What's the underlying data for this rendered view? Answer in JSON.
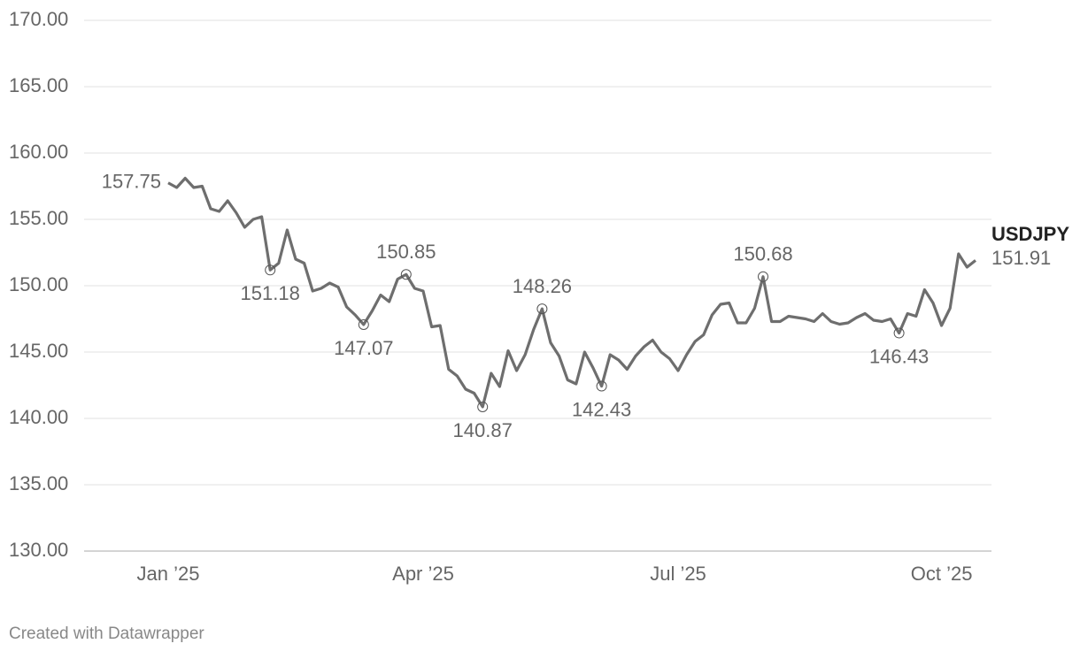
{
  "chart_data": {
    "type": "line",
    "categories": [
      "Jan ’25",
      null,
      null,
      null,
      null,
      null,
      null,
      null,
      null,
      null,
      null,
      null,
      null,
      null,
      null,
      null,
      null,
      null,
      null,
      null,
      null,
      null,
      null,
      null,
      null,
      null,
      null,
      null,
      null,
      null,
      "Apr ’25",
      null,
      null,
      null,
      null,
      null,
      null,
      null,
      null,
      null,
      null,
      null,
      null,
      null,
      null,
      null,
      null,
      null,
      null,
      null,
      null,
      null,
      null,
      null,
      null,
      null,
      null,
      null,
      null,
      null,
      "Jul ’25",
      null,
      null,
      null,
      null,
      null,
      null,
      null,
      null,
      null,
      null,
      null,
      null,
      null,
      null,
      null,
      null,
      null,
      null,
      null,
      null,
      null,
      null,
      null,
      null,
      null,
      null,
      null,
      null,
      null,
      null,
      "Oct ’25",
      null,
      null,
      null,
      null
    ],
    "series": [
      {
        "name": "USDJPY",
        "color": "#6e6e6e",
        "values": [
          157.75,
          157.4,
          158.1,
          157.4,
          157.5,
          155.8,
          155.6,
          156.4,
          155.5,
          154.4,
          155.0,
          155.2,
          151.18,
          151.7,
          154.2,
          152.0,
          151.7,
          149.6,
          149.8,
          150.2,
          149.9,
          148.4,
          147.8,
          147.07,
          148.1,
          149.3,
          148.8,
          150.5,
          150.85,
          149.8,
          149.6,
          146.9,
          147.0,
          143.7,
          143.2,
          142.2,
          141.9,
          140.87,
          143.4,
          142.4,
          145.1,
          143.6,
          144.8,
          146.7,
          148.26,
          145.7,
          144.7,
          142.9,
          142.6,
          145.0,
          143.8,
          142.43,
          144.8,
          144.4,
          143.7,
          144.7,
          145.4,
          145.9,
          145.0,
          144.5,
          143.6,
          144.8,
          145.8,
          146.3,
          147.8,
          148.6,
          148.7,
          147.2,
          147.2,
          148.3,
          150.68,
          147.3,
          147.3,
          147.7,
          147.6,
          147.5,
          147.3,
          147.9,
          147.3,
          147.1,
          147.2,
          147.6,
          147.9,
          147.4,
          147.3,
          147.5,
          146.43,
          147.9,
          147.7,
          149.7,
          148.7,
          147.0,
          148.3,
          152.4,
          151.4,
          151.91
        ]
      }
    ],
    "labeled_points": [
      0,
      12,
      23,
      28,
      37,
      44,
      51,
      70,
      86,
      95
    ],
    "ylim": [
      130,
      170
    ],
    "yticks": [
      {
        "value": 130,
        "label": "130.00"
      },
      {
        "value": 135,
        "label": "135.00"
      },
      {
        "value": 140,
        "label": "140.00"
      },
      {
        "value": 145,
        "label": "145.00"
      },
      {
        "value": 150,
        "label": "150.00"
      },
      {
        "value": 155,
        "label": "155.00"
      },
      {
        "value": 160,
        "label": "160.00"
      },
      {
        "value": 165,
        "label": "165.00"
      },
      {
        "value": 170,
        "label": "170.00"
      }
    ],
    "grid": true,
    "credit": "Created with Datawrapper"
  }
}
